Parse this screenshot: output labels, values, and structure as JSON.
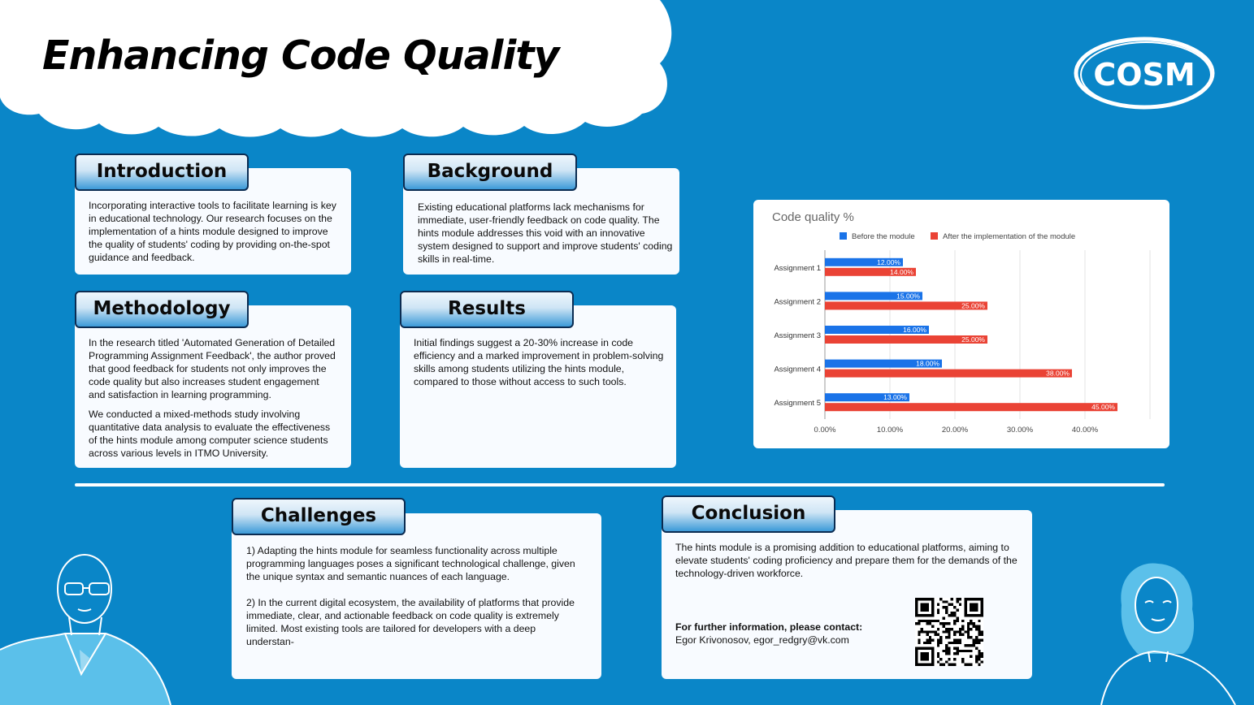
{
  "poster": {
    "title": "Enhancing Code Quality",
    "logo_text": "COSM"
  },
  "sections": {
    "introduction": {
      "heading": "Introduction",
      "text": "Incorporating interactive tools to facilitate learning is key in educational technology. Our research focuses on the implementation of a hints module designed to improve the quality of students' coding by providing on-the-spot guidance and feedback."
    },
    "background": {
      "heading": "Background",
      "text": "Existing educational platforms lack mechanisms for immediate, user-friendly feedback on code quality. The hints module addresses this void with an innovative system designed to support and improve students' coding skills in real-time."
    },
    "methodology": {
      "heading": "Methodology",
      "text1": "In the research titled 'Automated Generation of Detailed Programming Assignment Feedback', the author proved that good feedback for students not only improves the code quality but also increases student engagement and satisfaction in learning programming.",
      "text2": "We conducted a mixed-methods study involving quantitative data analysis to evaluate the effectiveness of the hints module among computer science students across various levels in ITMO University."
    },
    "results": {
      "heading": "Results",
      "text": "Initial findings suggest a 20-30% increase in code efficiency and a marked improvement in problem-solving skills among students utilizing the hints module, compared to those without access to such tools."
    },
    "challenges": {
      "heading": "Challenges",
      "text1": "1) Adapting the hints module for seamless functionality across multiple programming languages poses a significant technological challenge, given the unique syntax and semantic nuances of each language.",
      "text2": "2) In the current digital ecosystem, the availability of platforms that provide immediate, clear, and actionable feedback on code quality is extremely limited. Most existing tools are tailored for developers with a deep understan-"
    },
    "conclusion": {
      "heading": "Conclusion",
      "text": "The hints module is a promising addition to educational platforms, aiming to elevate students' coding proficiency and prepare them for the demands of the technology-driven workforce.",
      "contact_label": "For further information, please contact:",
      "contact_value": "Egor Krivonosov, egor_redgry@vk.com"
    }
  },
  "chart_data": {
    "type": "bar",
    "orientation": "horizontal",
    "title": "Code quality %",
    "categories": [
      "Assignment 1",
      "Assignment 2",
      "Assignment 3",
      "Assignment 4",
      "Assignment 5"
    ],
    "series": [
      {
        "name": "Before the module",
        "color": "#1a73e8",
        "values": [
          12,
          15,
          16,
          18,
          13
        ]
      },
      {
        "name": "After the implementation of the module",
        "color": "#ea4335",
        "values": [
          14,
          25,
          25,
          38,
          45
        ]
      }
    ],
    "value_labels": [
      [
        "12.00%",
        "15.00%",
        "16.00%",
        "18.00%",
        "13.00%"
      ],
      [
        "14.00%",
        "25.00%",
        "25.00%",
        "38.00%",
        "45.00%"
      ]
    ],
    "xlim": [
      0,
      50
    ],
    "xticks": [
      "0.00%",
      "10.00%",
      "20.00%",
      "30.00%",
      "40.00%"
    ],
    "grid": true,
    "legend_position": "top"
  }
}
